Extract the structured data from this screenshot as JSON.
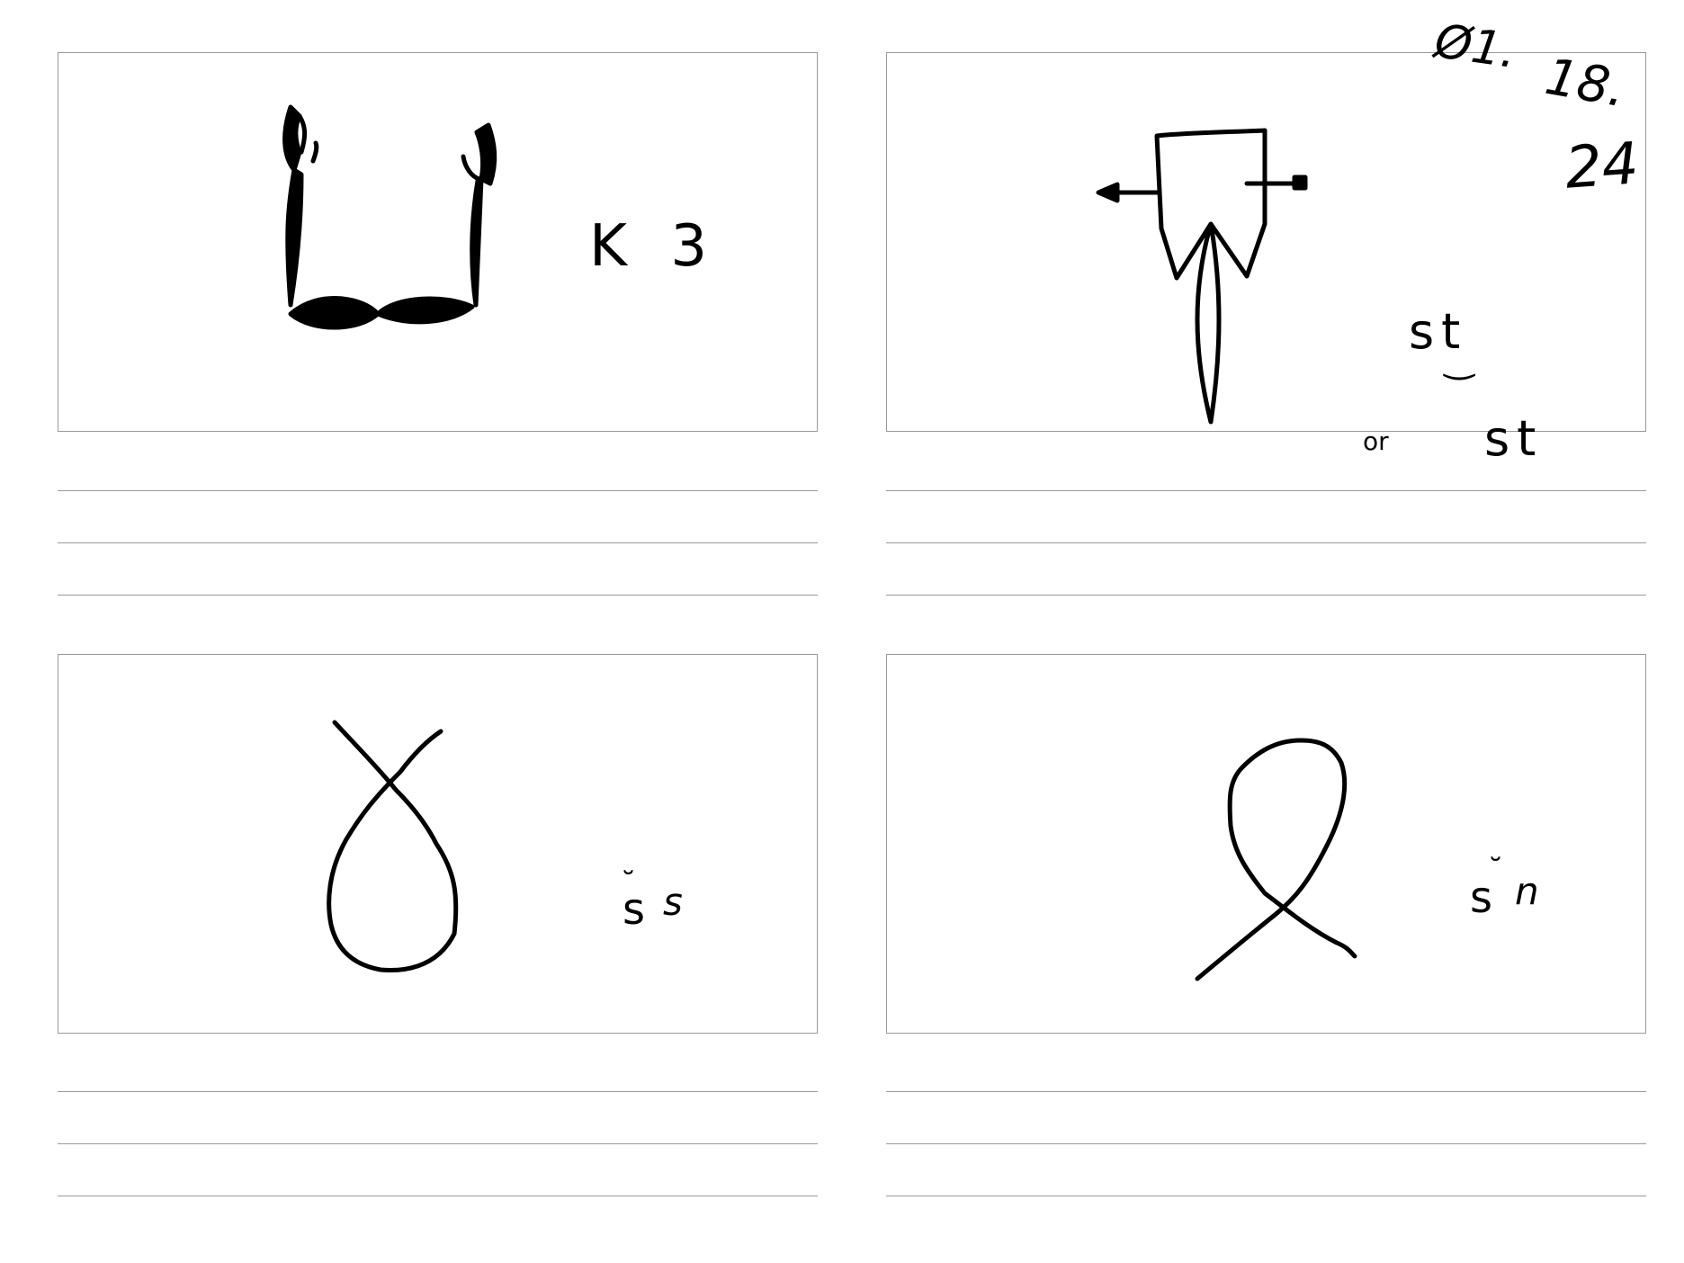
{
  "date_note": {
    "line1": "Ø1.",
    "line2": "18.",
    "line3": "24"
  },
  "cards": [
    {
      "id": "top-left",
      "label": "K 3",
      "icon": "pincers-glyph-icon"
    },
    {
      "id": "top-right",
      "label_main": "st",
      "label_alt_prefix": "or",
      "label_alt": "st",
      "icon": "arrow-box-glyph-icon"
    },
    {
      "id": "bottom-left",
      "label_breve": "˘",
      "label_base": "s",
      "label_rest": "s",
      "icon": "loop-up-glyph-icon"
    },
    {
      "id": "bottom-right",
      "label_breve": "˘",
      "label_base": "s",
      "label_rest": "n",
      "icon": "loop-down-glyph-icon"
    }
  ]
}
